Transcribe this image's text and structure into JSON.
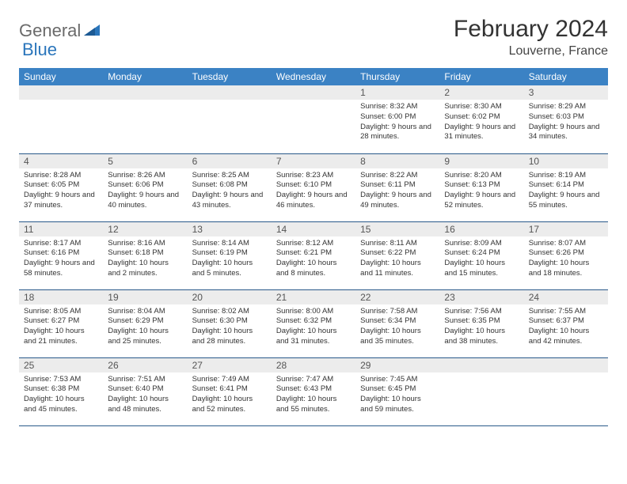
{
  "logo": {
    "part1": "General",
    "part2": "Blue"
  },
  "title": "February 2024",
  "location": "Louverne, France",
  "colors": {
    "header_bg": "#3b82c4",
    "header_text": "#ffffff",
    "daynum_bg": "#ececec",
    "border": "#2a5a8a",
    "logo_gray": "#6a6a6a",
    "logo_blue": "#2a75bb"
  },
  "weekdays": [
    "Sunday",
    "Monday",
    "Tuesday",
    "Wednesday",
    "Thursday",
    "Friday",
    "Saturday"
  ],
  "weeks": [
    [
      null,
      null,
      null,
      null,
      {
        "d": "1",
        "sr": "8:32 AM",
        "ss": "6:00 PM",
        "dl": "9 hours and 28 minutes."
      },
      {
        "d": "2",
        "sr": "8:30 AM",
        "ss": "6:02 PM",
        "dl": "9 hours and 31 minutes."
      },
      {
        "d": "3",
        "sr": "8:29 AM",
        "ss": "6:03 PM",
        "dl": "9 hours and 34 minutes."
      }
    ],
    [
      {
        "d": "4",
        "sr": "8:28 AM",
        "ss": "6:05 PM",
        "dl": "9 hours and 37 minutes."
      },
      {
        "d": "5",
        "sr": "8:26 AM",
        "ss": "6:06 PM",
        "dl": "9 hours and 40 minutes."
      },
      {
        "d": "6",
        "sr": "8:25 AM",
        "ss": "6:08 PM",
        "dl": "9 hours and 43 minutes."
      },
      {
        "d": "7",
        "sr": "8:23 AM",
        "ss": "6:10 PM",
        "dl": "9 hours and 46 minutes."
      },
      {
        "d": "8",
        "sr": "8:22 AM",
        "ss": "6:11 PM",
        "dl": "9 hours and 49 minutes."
      },
      {
        "d": "9",
        "sr": "8:20 AM",
        "ss": "6:13 PM",
        "dl": "9 hours and 52 minutes."
      },
      {
        "d": "10",
        "sr": "8:19 AM",
        "ss": "6:14 PM",
        "dl": "9 hours and 55 minutes."
      }
    ],
    [
      {
        "d": "11",
        "sr": "8:17 AM",
        "ss": "6:16 PM",
        "dl": "9 hours and 58 minutes."
      },
      {
        "d": "12",
        "sr": "8:16 AM",
        "ss": "6:18 PM",
        "dl": "10 hours and 2 minutes."
      },
      {
        "d": "13",
        "sr": "8:14 AM",
        "ss": "6:19 PM",
        "dl": "10 hours and 5 minutes."
      },
      {
        "d": "14",
        "sr": "8:12 AM",
        "ss": "6:21 PM",
        "dl": "10 hours and 8 minutes."
      },
      {
        "d": "15",
        "sr": "8:11 AM",
        "ss": "6:22 PM",
        "dl": "10 hours and 11 minutes."
      },
      {
        "d": "16",
        "sr": "8:09 AM",
        "ss": "6:24 PM",
        "dl": "10 hours and 15 minutes."
      },
      {
        "d": "17",
        "sr": "8:07 AM",
        "ss": "6:26 PM",
        "dl": "10 hours and 18 minutes."
      }
    ],
    [
      {
        "d": "18",
        "sr": "8:05 AM",
        "ss": "6:27 PM",
        "dl": "10 hours and 21 minutes."
      },
      {
        "d": "19",
        "sr": "8:04 AM",
        "ss": "6:29 PM",
        "dl": "10 hours and 25 minutes."
      },
      {
        "d": "20",
        "sr": "8:02 AM",
        "ss": "6:30 PM",
        "dl": "10 hours and 28 minutes."
      },
      {
        "d": "21",
        "sr": "8:00 AM",
        "ss": "6:32 PM",
        "dl": "10 hours and 31 minutes."
      },
      {
        "d": "22",
        "sr": "7:58 AM",
        "ss": "6:34 PM",
        "dl": "10 hours and 35 minutes."
      },
      {
        "d": "23",
        "sr": "7:56 AM",
        "ss": "6:35 PM",
        "dl": "10 hours and 38 minutes."
      },
      {
        "d": "24",
        "sr": "7:55 AM",
        "ss": "6:37 PM",
        "dl": "10 hours and 42 minutes."
      }
    ],
    [
      {
        "d": "25",
        "sr": "7:53 AM",
        "ss": "6:38 PM",
        "dl": "10 hours and 45 minutes."
      },
      {
        "d": "26",
        "sr": "7:51 AM",
        "ss": "6:40 PM",
        "dl": "10 hours and 48 minutes."
      },
      {
        "d": "27",
        "sr": "7:49 AM",
        "ss": "6:41 PM",
        "dl": "10 hours and 52 minutes."
      },
      {
        "d": "28",
        "sr": "7:47 AM",
        "ss": "6:43 PM",
        "dl": "10 hours and 55 minutes."
      },
      {
        "d": "29",
        "sr": "7:45 AM",
        "ss": "6:45 PM",
        "dl": "10 hours and 59 minutes."
      },
      null,
      null
    ]
  ],
  "labels": {
    "sunrise": "Sunrise: ",
    "sunset": "Sunset: ",
    "daylight": "Daylight: "
  }
}
